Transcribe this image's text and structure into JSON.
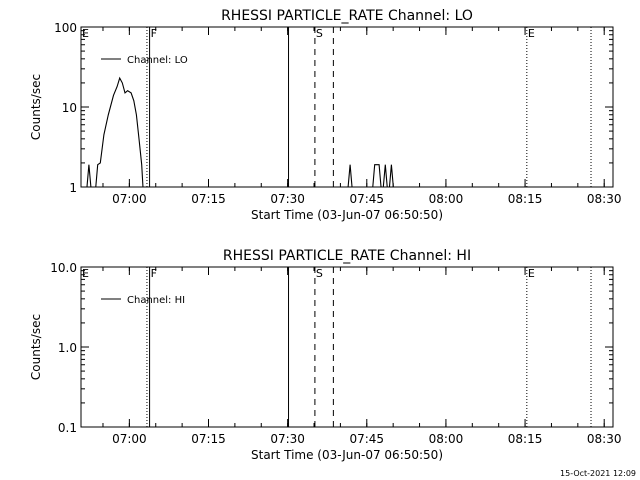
{
  "footer": {
    "timestamp": "15-Oct-2021 12:09"
  },
  "chart_data": [
    {
      "type": "line",
      "title": "RHESSI PARTICLE_RATE Channel: LO",
      "xlabel": "Start Time (03-Jun-07 06:50:50)",
      "ylabel": "Counts/sec",
      "y_scale": "log",
      "xlim": [
        "06:50:50",
        "08:31:40"
      ],
      "ylim": [
        1,
        100
      ],
      "x_ticks": [
        "07:00",
        "07:15",
        "07:30",
        "07:45",
        "08:00",
        "08:15",
        "08:30"
      ],
      "y_ticks": [
        "1",
        "10",
        "100"
      ],
      "legend": {
        "position": "top-left",
        "entries": [
          "Channel: LO"
        ]
      },
      "markers": [
        {
          "label": "E",
          "time": "06:50:50",
          "style": "none"
        },
        {
          "label": "F",
          "time": "07:03:50",
          "style": "solid"
        },
        {
          "label": "",
          "time": "07:03:20",
          "style": "dotted"
        },
        {
          "label": "",
          "time": "07:30:10",
          "style": "solid"
        },
        {
          "label": "S",
          "time": "07:35:10",
          "style": "dashed"
        },
        {
          "label": "",
          "time": "07:38:40",
          "style": "dashed"
        },
        {
          "label": "E",
          "time": "08:15:20",
          "style": "dotted"
        },
        {
          "label": "",
          "time": "08:27:30",
          "style": "dotted"
        }
      ],
      "series": [
        {
          "name": "Channel: LO",
          "segments": [
            [
              [
                "06:51:50",
                0.8
              ],
              [
                "06:52:20",
                1.9
              ],
              [
                "06:52:50",
                0.8
              ]
            ],
            [
              [
                "06:53:30",
                0.8
              ],
              [
                "06:54:00",
                1.9
              ],
              [
                "06:54:30",
                2.0
              ],
              [
                "06:55:10",
                4.5
              ],
              [
                "06:56:00",
                8
              ],
              [
                "06:57:00",
                14
              ],
              [
                "06:57:40",
                18
              ],
              [
                "06:58:10",
                23
              ],
              [
                "06:58:40",
                20
              ],
              [
                "06:59:10",
                15
              ],
              [
                "06:59:40",
                16
              ],
              [
                "07:00:20",
                15
              ],
              [
                "07:00:50",
                12
              ],
              [
                "07:01:20",
                8
              ],
              [
                "07:01:50",
                4
              ],
              [
                "07:02:20",
                1.9
              ],
              [
                "07:02:40",
                0.8
              ]
            ],
            [
              [
                "07:41:20",
                0.8
              ],
              [
                "07:41:50",
                1.9
              ],
              [
                "07:42:20",
                0.8
              ]
            ],
            [
              [
                "07:46:00",
                0.8
              ],
              [
                "07:46:30",
                1.9
              ],
              [
                "07:47:20",
                1.9
              ],
              [
                "07:47:50",
                0.8
              ]
            ],
            [
              [
                "07:48:00",
                0.8
              ],
              [
                "07:48:30",
                1.9
              ],
              [
                "07:49:00",
                0.8
              ]
            ],
            [
              [
                "07:49:10",
                0.8
              ],
              [
                "07:49:40",
                1.9
              ],
              [
                "07:50:10",
                0.8
              ]
            ]
          ]
        }
      ]
    },
    {
      "type": "line",
      "title": "RHESSI PARTICLE_RATE Channel: HI",
      "xlabel": "Start Time (03-Jun-07 06:50:50)",
      "ylabel": "Counts/sec",
      "y_scale": "log",
      "xlim": [
        "06:50:50",
        "08:31:40"
      ],
      "ylim": [
        0.1,
        10
      ],
      "x_ticks": [
        "07:00",
        "07:15",
        "07:30",
        "07:45",
        "08:00",
        "08:15",
        "08:30"
      ],
      "y_ticks": [
        "0.1",
        "1.0",
        "10.0"
      ],
      "legend": {
        "position": "top-left",
        "entries": [
          "Channel: HI"
        ]
      },
      "markers": [
        {
          "label": "E",
          "time": "06:50:50",
          "style": "none"
        },
        {
          "label": "F",
          "time": "07:03:50",
          "style": "solid"
        },
        {
          "label": "",
          "time": "07:03:20",
          "style": "dotted"
        },
        {
          "label": "",
          "time": "07:30:10",
          "style": "solid"
        },
        {
          "label": "S",
          "time": "07:35:10",
          "style": "dashed"
        },
        {
          "label": "",
          "time": "07:38:40",
          "style": "dashed"
        },
        {
          "label": "E",
          "time": "08:15:20",
          "style": "dotted"
        },
        {
          "label": "",
          "time": "08:27:30",
          "style": "dotted"
        }
      ],
      "series": [
        {
          "name": "Channel: HI",
          "segments": []
        }
      ]
    }
  ]
}
